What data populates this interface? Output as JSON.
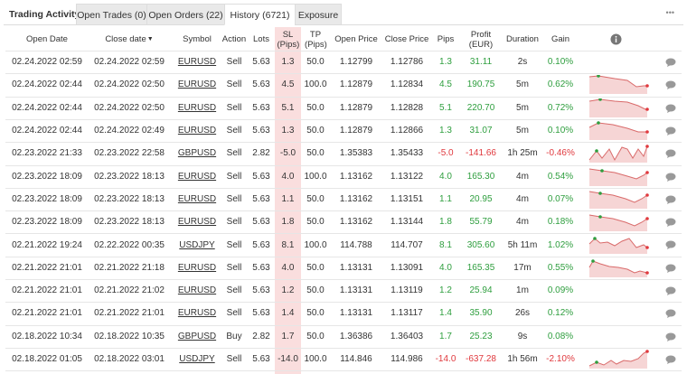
{
  "tabs": {
    "title": "Trading Activity",
    "items": [
      "Open Trades (0)",
      "Open Orders (22)",
      "History (6721)",
      "Exposure"
    ],
    "more": "•••"
  },
  "table": {
    "headers": [
      "Open Date",
      "Close date",
      "Symbol",
      "Action",
      "Lots",
      "SL (Pips)",
      "TP (Pips)",
      "Open Price",
      "Close Price",
      "Pips",
      "Profit (EUR)",
      "Duration",
      "Gain"
    ],
    "rows": [
      [
        "02.24.2022 02:59",
        "02.24.2022 02:59",
        "EURUSD",
        "Sell",
        "5.63",
        "1.3",
        "50.0",
        "1.12799",
        "1.12786",
        "1.3",
        "31.11",
        "2s",
        "0.10%"
      ],
      [
        "02.24.2022 02:44",
        "02.24.2022 02:50",
        "EURUSD",
        "Sell",
        "5.63",
        "4.5",
        "100.0",
        "1.12879",
        "1.12834",
        "4.5",
        "190.75",
        "5m",
        "0.62%"
      ],
      [
        "02.24.2022 02:44",
        "02.24.2022 02:50",
        "EURUSD",
        "Sell",
        "5.63",
        "5.1",
        "50.0",
        "1.12879",
        "1.12828",
        "5.1",
        "220.70",
        "5m",
        "0.72%"
      ],
      [
        "02.24.2022 02:44",
        "02.24.2022 02:49",
        "EURUSD",
        "Sell",
        "5.63",
        "1.3",
        "50.0",
        "1.12879",
        "1.12866",
        "1.3",
        "31.07",
        "5m",
        "0.10%"
      ],
      [
        "02.23.2022 21:33",
        "02.23.2022 22:58",
        "GBPUSD",
        "Sell",
        "2.82",
        "-5.0",
        "50.0",
        "1.35383",
        "1.35433",
        "-5.0",
        "-141.66",
        "1h 25m",
        "-0.46%"
      ],
      [
        "02.23.2022 18:09",
        "02.23.2022 18:13",
        "EURUSD",
        "Sell",
        "5.63",
        "4.0",
        "100.0",
        "1.13162",
        "1.13122",
        "4.0",
        "165.30",
        "4m",
        "0.54%"
      ],
      [
        "02.23.2022 18:09",
        "02.23.2022 18:13",
        "EURUSD",
        "Sell",
        "5.63",
        "1.1",
        "50.0",
        "1.13162",
        "1.13151",
        "1.1",
        "20.95",
        "4m",
        "0.07%"
      ],
      [
        "02.23.2022 18:09",
        "02.23.2022 18:13",
        "EURUSD",
        "Sell",
        "5.63",
        "1.8",
        "50.0",
        "1.13162",
        "1.13144",
        "1.8",
        "55.79",
        "4m",
        "0.18%"
      ],
      [
        "02.21.2022 19:24",
        "02.22.2022 00:35",
        "USDJPY",
        "Sell",
        "5.63",
        "8.1",
        "100.0",
        "114.788",
        "114.707",
        "8.1",
        "305.60",
        "5h 11m",
        "1.02%"
      ],
      [
        "02.21.2022 21:01",
        "02.21.2022 21:18",
        "EURUSD",
        "Sell",
        "5.63",
        "4.0",
        "50.0",
        "1.13131",
        "1.13091",
        "4.0",
        "165.35",
        "17m",
        "0.55%"
      ],
      [
        "02.21.2022 21:01",
        "02.21.2022 21:02",
        "EURUSD",
        "Sell",
        "5.63",
        "1.2",
        "50.0",
        "1.13131",
        "1.13119",
        "1.2",
        "25.94",
        "1m",
        "0.09%"
      ],
      [
        "02.21.2022 21:01",
        "02.21.2022 21:01",
        "EURUSD",
        "Sell",
        "5.63",
        "1.4",
        "50.0",
        "1.13131",
        "1.13117",
        "1.4",
        "35.90",
        "26s",
        "0.12%"
      ],
      [
        "02.18.2022 10:34",
        "02.18.2022 10:35",
        "GBPUSD",
        "Buy",
        "2.82",
        "1.7",
        "50.0",
        "1.36386",
        "1.36403",
        "1.7",
        "25.23",
        "9s",
        "0.08%"
      ],
      [
        "02.18.2022 01:05",
        "02.18.2022 03:01",
        "USDJPY",
        "Sell",
        "5.63",
        "-14.0",
        "100.0",
        "114.846",
        "114.986",
        "-14.0",
        "-637.28",
        "1h 56m",
        "-2.10%"
      ]
    ]
  }
}
